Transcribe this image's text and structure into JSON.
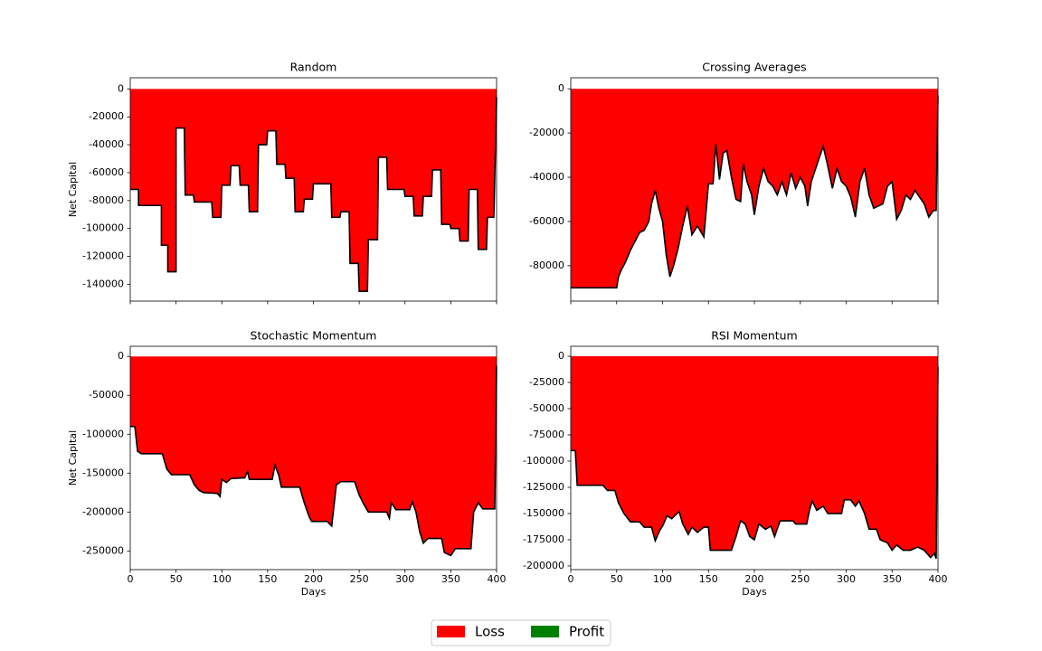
{
  "chart_data": [
    {
      "type": "area",
      "title": "Random",
      "ylabel": "Net Capital",
      "xlim": [
        0,
        400
      ],
      "xticks": [
        0,
        50,
        100,
        150,
        200,
        250,
        300,
        350,
        400
      ],
      "show_xtick_labels": false,
      "ylim": [
        -152000,
        8000
      ],
      "yticks": [
        -140000,
        -120000,
        -100000,
        -80000,
        -60000,
        -40000,
        -20000,
        0
      ],
      "line_color": "#000000",
      "x": [
        0,
        9,
        9,
        34,
        34,
        41,
        41,
        50,
        50,
        59,
        60,
        69,
        70,
        89,
        90,
        99,
        100,
        109,
        110,
        119,
        120,
        129,
        130,
        139,
        140,
        149,
        150,
        159,
        160,
        169,
        170,
        179,
        180,
        189,
        190,
        199,
        200,
        219,
        220,
        229,
        230,
        239,
        240,
        249,
        250,
        259,
        260,
        270,
        271,
        280,
        281,
        299,
        300,
        309,
        310,
        319,
        320,
        329,
        330,
        339,
        340,
        349,
        350,
        359,
        360,
        369,
        370,
        379,
        380,
        389,
        390,
        397,
        400
      ],
      "values": [
        -72000,
        -72000,
        -83500,
        -83500,
        -112000,
        -112000,
        -131000,
        -131000,
        -28000,
        -28000,
        -76000,
        -76000,
        -81000,
        -81000,
        -92000,
        -92000,
        -69000,
        -69000,
        -55000,
        -55000,
        -69000,
        -69000,
        -88000,
        -88000,
        -40000,
        -40000,
        -30000,
        -30000,
        -54000,
        -54000,
        -64000,
        -64000,
        -88000,
        -88000,
        -79000,
        -79000,
        -68000,
        -68000,
        -92000,
        -92000,
        -88000,
        -88000,
        -125000,
        -125000,
        -145000,
        -145000,
        -108000,
        -108000,
        -49000,
        -49000,
        -72000,
        -72000,
        -77000,
        -77000,
        -91000,
        -91000,
        -77000,
        -77000,
        -58000,
        -58000,
        -97000,
        -97000,
        -100000,
        -100000,
        -109000,
        -109000,
        -72000,
        -72000,
        -115000,
        -115000,
        -92000,
        -92000,
        -6000
      ]
    },
    {
      "type": "area",
      "title": "Crossing Averages",
      "xlim": [
        0,
        400
      ],
      "xticks": [
        0,
        50,
        100,
        150,
        200,
        250,
        300,
        350,
        400
      ],
      "show_xtick_labels": false,
      "ylim": [
        -96000,
        5000
      ],
      "yticks": [
        -80000,
        -60000,
        -40000,
        -20000,
        0
      ],
      "line_color": "#000000",
      "x": [
        0,
        50,
        52,
        55,
        60,
        65,
        70,
        75,
        80,
        85,
        88,
        92,
        96,
        100,
        104,
        108,
        112,
        117,
        122,
        127,
        132,
        138,
        145,
        150,
        155,
        158,
        162,
        166,
        170,
        175,
        180,
        185,
        188,
        192,
        197,
        200,
        205,
        210,
        215,
        220,
        225,
        230,
        235,
        240,
        245,
        250,
        255,
        258,
        262,
        266,
        270,
        275,
        280,
        285,
        290,
        295,
        300,
        305,
        310,
        315,
        320,
        325,
        330,
        340,
        345,
        350,
        355,
        360,
        365,
        370,
        375,
        380,
        385,
        390,
        395,
        398,
        400
      ],
      "values": [
        -90000,
        -90000,
        -85000,
        -82000,
        -78000,
        -73000,
        -69000,
        -65000,
        -64000,
        -60000,
        -52000,
        -46000,
        -54000,
        -60000,
        -75000,
        -85000,
        -80000,
        -72000,
        -62000,
        -53000,
        -66000,
        -62000,
        -67000,
        -43000,
        -43000,
        -25000,
        -41000,
        -29000,
        -28000,
        -40000,
        -50000,
        -51000,
        -34000,
        -42000,
        -48000,
        -57000,
        -44000,
        -36000,
        -42000,
        -44000,
        -48000,
        -42000,
        -48000,
        -38000,
        -45000,
        -40000,
        -44000,
        -53000,
        -42000,
        -37000,
        -32000,
        -26000,
        -35000,
        -45000,
        -36000,
        -42000,
        -44000,
        -49000,
        -58000,
        -42000,
        -36000,
        -48000,
        -54000,
        -52000,
        -44000,
        -42000,
        -59000,
        -55000,
        -48000,
        -50000,
        -46000,
        -49000,
        -52000,
        -58000,
        -55000,
        -55000,
        -3000
      ]
    },
    {
      "type": "area",
      "title": "Stochastic Momentum",
      "xlabel": "Days",
      "ylabel": "Net Capital",
      "xlim": [
        0,
        400
      ],
      "xticks": [
        0,
        50,
        100,
        150,
        200,
        250,
        300,
        350,
        400
      ],
      "show_xtick_labels": true,
      "ylim": [
        -274000,
        13000
      ],
      "yticks": [
        -250000,
        -200000,
        -150000,
        -100000,
        -50000,
        0
      ],
      "line_color": "#000000",
      "x": [
        0,
        5,
        8,
        12,
        35,
        40,
        45,
        65,
        70,
        75,
        80,
        95,
        98,
        100,
        105,
        110,
        125,
        128,
        130,
        155,
        158,
        162,
        165,
        185,
        190,
        195,
        198,
        215,
        220,
        225,
        230,
        245,
        250,
        255,
        260,
        280,
        283,
        285,
        290,
        305,
        308,
        312,
        316,
        320,
        325,
        340,
        343,
        350,
        355,
        372,
        375,
        380,
        385,
        398,
        400
      ],
      "values": [
        -90000,
        -90000,
        -122000,
        -125000,
        -125000,
        -145000,
        -152000,
        -152000,
        -165000,
        -172000,
        -175000,
        -176000,
        -180000,
        -158000,
        -162000,
        -157000,
        -156000,
        -148000,
        -158000,
        -158000,
        -140000,
        -152000,
        -168000,
        -168000,
        -188000,
        -205000,
        -212000,
        -212000,
        -218000,
        -165000,
        -161000,
        -161000,
        -178000,
        -190000,
        -200000,
        -200000,
        -208000,
        -188000,
        -197000,
        -197000,
        -187000,
        -200000,
        -225000,
        -240000,
        -234000,
        -234000,
        -252000,
        -256000,
        -247000,
        -247000,
        -200000,
        -188000,
        -196000,
        -196000,
        -12000
      ]
    },
    {
      "type": "area",
      "title": "RSI Momentum",
      "xlabel": "Days",
      "xlim": [
        0,
        400
      ],
      "xticks": [
        0,
        50,
        100,
        150,
        200,
        250,
        300,
        350,
        400
      ],
      "show_xtick_labels": true,
      "ylim": [
        -203500,
        9500
      ],
      "yticks": [
        -200000,
        -175000,
        -150000,
        -125000,
        -100000,
        -75000,
        -50000,
        -25000,
        0
      ],
      "line_color": "#000000",
      "x": [
        0,
        5,
        7,
        35,
        40,
        48,
        52,
        58,
        65,
        75,
        80,
        88,
        92,
        97,
        100,
        105,
        110,
        118,
        122,
        128,
        132,
        138,
        145,
        150,
        152,
        175,
        180,
        185,
        190,
        195,
        200,
        205,
        212,
        218,
        222,
        228,
        242,
        245,
        257,
        260,
        263,
        268,
        275,
        280,
        295,
        298,
        305,
        310,
        314,
        320,
        325,
        333,
        337,
        345,
        350,
        355,
        362,
        370,
        378,
        385,
        392,
        396,
        398,
        400
      ],
      "values": [
        -90000,
        -90000,
        -123000,
        -123000,
        -128000,
        -128000,
        -140000,
        -150000,
        -158000,
        -158000,
        -163000,
        -163000,
        -176000,
        -166000,
        -162000,
        -152000,
        -155000,
        -148000,
        -160000,
        -170000,
        -163000,
        -168000,
        -163000,
        -163000,
        -185000,
        -185000,
        -172000,
        -157000,
        -160000,
        -172000,
        -175000,
        -160000,
        -165000,
        -162000,
        -172000,
        -157000,
        -157000,
        -160000,
        -160000,
        -147000,
        -138000,
        -147000,
        -143000,
        -150000,
        -150000,
        -137000,
        -137000,
        -143000,
        -138000,
        -150000,
        -165000,
        -165000,
        -175000,
        -178000,
        -185000,
        -180000,
        -185000,
        -185000,
        -182000,
        -185000,
        -192000,
        -188000,
        -193000,
        -10000
      ]
    }
  ],
  "legend": [
    {
      "name": "Loss",
      "color": "#ff0000"
    },
    {
      "name": "Profit",
      "color": "#008000"
    }
  ]
}
